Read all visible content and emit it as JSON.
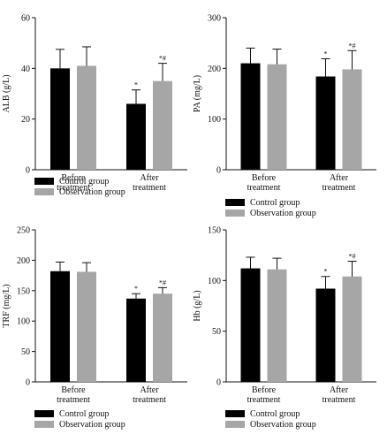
{
  "colors": {
    "control": "#000000",
    "observation": "#a6a6a6",
    "axis": "#111111"
  },
  "legend_labels": [
    "Control group",
    "Observation group"
  ],
  "chart_data": [
    {
      "type": "bar",
      "categories": [
        "Before treatment",
        "After treatment"
      ],
      "ylabel": "ALB (g/L)",
      "ylim": [
        0,
        60
      ],
      "yticks": [
        0,
        20,
        40,
        60
      ],
      "series": [
        {
          "name": "Control group",
          "values": [
            40,
            26
          ],
          "errors": [
            7.5,
            5.5
          ],
          "marks": [
            "",
            "*"
          ]
        },
        {
          "name": "Observation group",
          "values": [
            41,
            35
          ],
          "errors": [
            7.5,
            7
          ],
          "marks": [
            "",
            "*#"
          ]
        }
      ]
    },
    {
      "type": "bar",
      "categories": [
        "Before treatment",
        "After treatment"
      ],
      "ylabel": "PA (mg/L)",
      "ylim": [
        0,
        300
      ],
      "yticks": [
        0,
        100,
        200,
        300
      ],
      "series": [
        {
          "name": "Control group",
          "values": [
            210,
            184
          ],
          "errors": [
            30,
            35
          ],
          "marks": [
            "",
            "*"
          ]
        },
        {
          "name": "Observation group",
          "values": [
            208,
            198
          ],
          "errors": [
            30,
            37
          ],
          "marks": [
            "",
            "*#"
          ]
        }
      ]
    },
    {
      "type": "bar",
      "categories": [
        "Before treatment",
        "After treatment"
      ],
      "ylabel": "TRF (mg/L)",
      "ylim": [
        0,
        250
      ],
      "yticks": [
        0,
        50,
        100,
        150,
        200,
        250
      ],
      "series": [
        {
          "name": "Control group",
          "values": [
            182,
            137
          ],
          "errors": [
            15,
            8
          ],
          "marks": [
            "",
            "*"
          ]
        },
        {
          "name": "Observation group",
          "values": [
            181,
            145
          ],
          "errors": [
            15,
            10
          ],
          "marks": [
            "",
            "*#"
          ]
        }
      ]
    },
    {
      "type": "bar",
      "categories": [
        "Before treatment",
        "After treatment"
      ],
      "ylabel": "Hb (g/L)",
      "ylim": [
        0,
        150
      ],
      "yticks": [
        0,
        50,
        100,
        150
      ],
      "series": [
        {
          "name": "Control group",
          "values": [
            112,
            92
          ],
          "errors": [
            11,
            12
          ],
          "marks": [
            "",
            "*"
          ]
        },
        {
          "name": "Observation group",
          "values": [
            111,
            104
          ],
          "errors": [
            11,
            15
          ],
          "marks": [
            "",
            "*#"
          ]
        }
      ]
    }
  ]
}
